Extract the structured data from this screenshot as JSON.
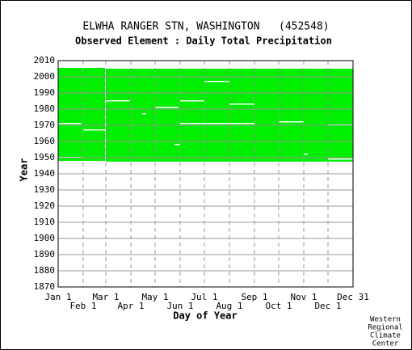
{
  "chart_data": {
    "type": "coverage",
    "title": "ELWHA RANGER STN, WASHINGTON   (452548)",
    "subtitle": "Observed Element : Daily Total Precipitation",
    "x_label": "Day of Year",
    "y_label": "Year",
    "credit": [
      "Western",
      "Regional",
      "Climate",
      "Center"
    ],
    "color": "#00ee00",
    "xlim": [
      1,
      366
    ],
    "ylim": [
      1870,
      2010
    ],
    "xticks": [
      {
        "value": 1,
        "label": "Jan 1"
      },
      {
        "value": 32,
        "label": "Feb 1"
      },
      {
        "value": 60,
        "label": "Mar 1"
      },
      {
        "value": 91,
        "label": "Apr 1"
      },
      {
        "value": 121,
        "label": "May 1"
      },
      {
        "value": 152,
        "label": "Jun 1"
      },
      {
        "value": 182,
        "label": "Jul 1"
      },
      {
        "value": 213,
        "label": "Aug 1"
      },
      {
        "value": 244,
        "label": "Sep 1"
      },
      {
        "value": 274,
        "label": "Oct 1"
      },
      {
        "value": 305,
        "label": "Nov 1"
      },
      {
        "value": 335,
        "label": "Dec 1"
      },
      {
        "value": 366,
        "label": "Dec 31"
      }
    ],
    "yticks": [
      1870,
      1880,
      1890,
      1900,
      1910,
      1920,
      1930,
      1940,
      1950,
      1960,
      1970,
      1980,
      1990,
      2000,
      2010
    ],
    "blocks": [
      {
        "day": [
          1,
          59
        ],
        "year": [
          1948,
          2005.5
        ]
      },
      {
        "day": [
          60,
          366
        ],
        "year": [
          1947.5,
          2005
        ]
      }
    ],
    "gaps": [
      {
        "day": [
          59,
          60
        ],
        "year": [
          1948,
          2005.5
        ]
      },
      {
        "day": [
          1,
          30
        ],
        "year": [
          1971,
          1971.5
        ]
      },
      {
        "day": [
          32,
          59
        ],
        "year": [
          1967,
          1967.5
        ]
      },
      {
        "day": [
          1,
          30
        ],
        "year": [
          1950,
          1950.5
        ]
      },
      {
        "day": [
          60,
          90
        ],
        "year": [
          1985,
          1985.5
        ]
      },
      {
        "day": [
          121,
          150
        ],
        "year": [
          1981,
          1981.5
        ]
      },
      {
        "day": [
          105,
          110
        ],
        "year": [
          1977,
          1977.5
        ]
      },
      {
        "day": [
          145,
          152
        ],
        "year": [
          1958,
          1958.5
        ]
      },
      {
        "day": [
          152,
          182
        ],
        "year": [
          1985,
          1985.5
        ]
      },
      {
        "day": [
          182,
          213
        ],
        "year": [
          1997,
          1997.5
        ]
      },
      {
        "day": [
          152,
          244
        ],
        "year": [
          1971,
          1971.5
        ]
      },
      {
        "day": [
          213,
          244
        ],
        "year": [
          1983,
          1983.5
        ]
      },
      {
        "day": [
          274,
          305
        ],
        "year": [
          1972,
          1972.5
        ]
      },
      {
        "day": [
          335,
          366
        ],
        "year": [
          1970,
          1970.5
        ]
      },
      {
        "day": [
          335,
          366
        ],
        "year": [
          1949,
          1949.5
        ]
      },
      {
        "day": [
          305,
          310
        ],
        "year": [
          1952,
          1952.5
        ]
      }
    ]
  }
}
